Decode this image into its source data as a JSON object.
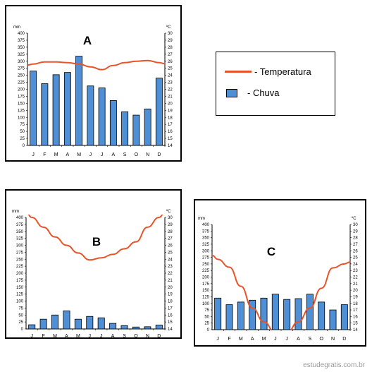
{
  "legend": {
    "temperature_label": "- Temperatura",
    "rain_label": "- Chuva"
  },
  "watermark": "estudegratis.com.br",
  "colors": {
    "bar": "#4f8fd6",
    "temperature_line": "#e8542a",
    "frame": "#000000"
  },
  "chart_data": [
    {
      "type": "bar",
      "title": "A",
      "categories": [
        "J",
        "F",
        "M",
        "A",
        "M",
        "J",
        "J",
        "A",
        "S",
        "O",
        "N",
        "D"
      ],
      "left_unit": "mm",
      "right_unit": "ºC",
      "left_ticks": [
        "400",
        "375",
        "350",
        "325",
        "300",
        "275",
        "250",
        "225",
        "200",
        "175",
        "150",
        "125",
        "100",
        "75",
        "50",
        "25",
        "0"
      ],
      "right_ticks": [
        "30",
        "29",
        "28",
        "27",
        "26",
        "25",
        "24",
        "23",
        "22",
        "21",
        "20",
        "19",
        "18",
        "17",
        "16",
        "15",
        "14"
      ],
      "ylim": [
        0,
        400
      ],
      "y2lim": [
        14,
        30
      ],
      "series": [
        {
          "name": "Chuva",
          "values": [
            265,
            220,
            252,
            260,
            318,
            212,
            205,
            160,
            120,
            108,
            130,
            240
          ]
        },
        {
          "name": "Temperatura",
          "values": [
            25.6,
            25.9,
            25.9,
            25.8,
            25.6,
            25.2,
            24.8,
            25.4,
            25.8,
            26.0,
            26.1,
            25.8
          ]
        }
      ]
    },
    {
      "type": "bar",
      "title": "B",
      "categories": [
        "J",
        "F",
        "M",
        "A",
        "M",
        "J",
        "J",
        "A",
        "S",
        "O",
        "N",
        "D"
      ],
      "left_unit": "mm",
      "right_unit": "ºC",
      "left_ticks": [
        "400",
        "375",
        "350",
        "325",
        "300",
        "275",
        "250",
        "225",
        "200",
        "175",
        "150",
        "125",
        "100",
        "75",
        "50",
        "25",
        "0"
      ],
      "right_ticks": [
        "30",
        "29",
        "28",
        "27",
        "26",
        "25",
        "24",
        "23",
        "22",
        "21",
        "20",
        "19",
        "18",
        "17",
        "16",
        "15",
        "14"
      ],
      "ylim": [
        0,
        400
      ],
      "y2lim": [
        14,
        30
      ],
      "series": [
        {
          "name": "Chuva",
          "values": [
            15,
            35,
            50,
            65,
            35,
            45,
            40,
            20,
            12,
            7,
            8,
            14
          ]
        },
        {
          "name": "Temperatura",
          "values": [
            30,
            28.6,
            27.2,
            26,
            24.9,
            23.9,
            24.2,
            24.7,
            25.5,
            26.5,
            28.6,
            30
          ]
        }
      ]
    },
    {
      "type": "bar",
      "title": "C",
      "categories": [
        "J",
        "F",
        "M",
        "A",
        "M",
        "J",
        "J",
        "A",
        "S",
        "O",
        "N",
        "D"
      ],
      "left_unit": "mm",
      "right_unit": "ºC",
      "left_ticks": [
        "400",
        "375",
        "350",
        "325",
        "300",
        "275",
        "250",
        "225",
        "200",
        "175",
        "150",
        "125",
        "100",
        "75",
        "50",
        "25",
        "0"
      ],
      "right_ticks": [
        "30",
        "29",
        "28",
        "27",
        "26",
        "25",
        "24",
        "23",
        "22",
        "21",
        "20",
        "19",
        "18",
        "17",
        "16",
        "15",
        "14"
      ],
      "ylim": [
        0,
        400
      ],
      "y2lim": [
        14,
        30
      ],
      "series": [
        {
          "name": "Chuva",
          "values": [
            120,
            95,
            105,
            112,
            120,
            135,
            115,
            118,
            135,
            105,
            75,
            95
          ]
        },
        {
          "name": "Temperatura",
          "values": [
            24.7,
            23.5,
            20.6,
            17.3,
            15.2,
            13.5,
            13.5,
            15.2,
            17.3,
            20.3,
            23.4,
            24.0
          ]
        }
      ]
    }
  ]
}
